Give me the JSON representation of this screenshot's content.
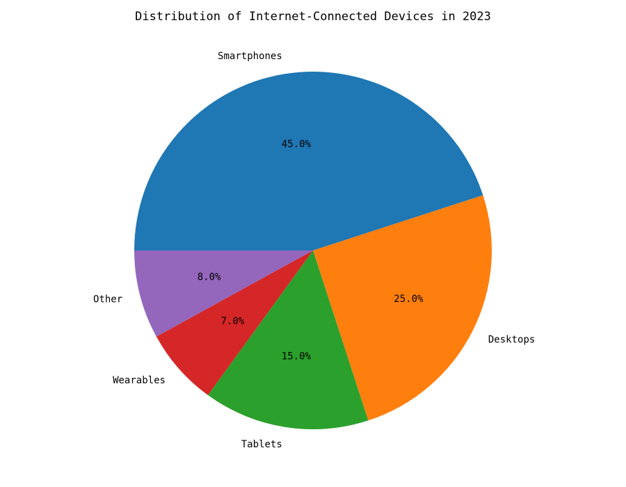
{
  "chart_data": {
    "type": "pie",
    "title": "Distribution of Internet-Connected Devices in 2023",
    "categories": [
      "Smartphones",
      "Desktops",
      "Tablets",
      "Wearables",
      "Other"
    ],
    "values": [
      45.0,
      25.0,
      15.0,
      7.0,
      8.0
    ],
    "percent_labels": [
      "45.0%",
      "25.0%",
      "15.0%",
      "7.0%",
      "8.0%"
    ],
    "colors": [
      "#1f77b4",
      "#ff7f0e",
      "#2ca02c",
      "#d62728",
      "#9467bd"
    ],
    "start_angle_deg": 180,
    "direction": "clockwise",
    "legend": "none"
  }
}
